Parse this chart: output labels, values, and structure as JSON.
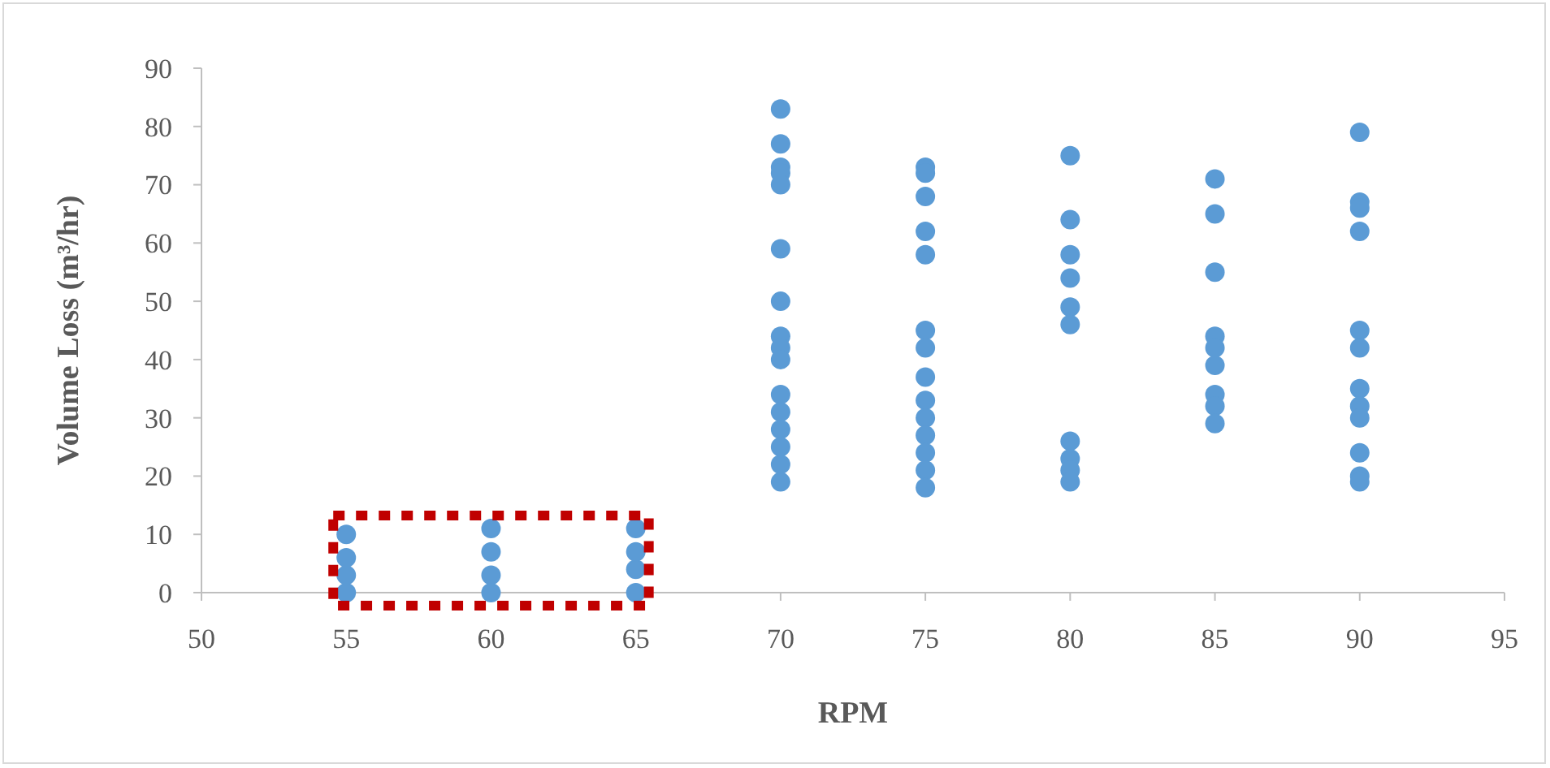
{
  "chart_data": {
    "type": "scatter",
    "xlabel": "RPM",
    "ylabel": "Volume Loss (m³/hr)",
    "xlim": [
      50,
      95
    ],
    "xticks": [
      50,
      55,
      60,
      65,
      70,
      75,
      80,
      85,
      90,
      95
    ],
    "ylim": [
      0,
      90
    ],
    "yticks": [
      0,
      10,
      20,
      30,
      40,
      50,
      60,
      70,
      80,
      90
    ],
    "grid": false,
    "marker": "circle",
    "series": [
      {
        "color": "#5b9bd5",
        "x": [
          55,
          55,
          55,
          55,
          60,
          60,
          60,
          60,
          65,
          65,
          65,
          65
        ],
        "values": [
          0,
          3,
          6,
          10,
          0,
          3,
          7,
          11,
          0,
          4,
          7,
          11
        ]
      },
      {
        "color": "#5b9bd5",
        "x": [
          70,
          70,
          70,
          70,
          70,
          70,
          70,
          70,
          70,
          70,
          70,
          70,
          70,
          70,
          70,
          70,
          75,
          75,
          75,
          75,
          75,
          75,
          75,
          75,
          75,
          75,
          75,
          75,
          75,
          75,
          80,
          80,
          80,
          80,
          80,
          80,
          80,
          80,
          80,
          80,
          85,
          85,
          85,
          85,
          85,
          85,
          85,
          85,
          85,
          90,
          90,
          90,
          90,
          90,
          90,
          90,
          90,
          90,
          90,
          90,
          90
        ],
        "values": [
          83,
          77,
          73,
          72,
          70,
          59,
          50,
          44,
          42,
          40,
          34,
          31,
          28,
          25,
          22,
          19,
          73,
          72,
          68,
          62,
          58,
          45,
          42,
          37,
          33,
          30,
          27,
          24,
          21,
          18,
          75,
          64,
          58,
          54,
          49,
          46,
          26,
          23,
          21,
          19,
          71,
          65,
          55,
          44,
          42,
          39,
          34,
          32,
          29,
          79,
          67,
          66,
          62,
          45,
          42,
          35,
          32,
          30,
          24,
          20,
          19
        ]
      }
    ]
  }
}
